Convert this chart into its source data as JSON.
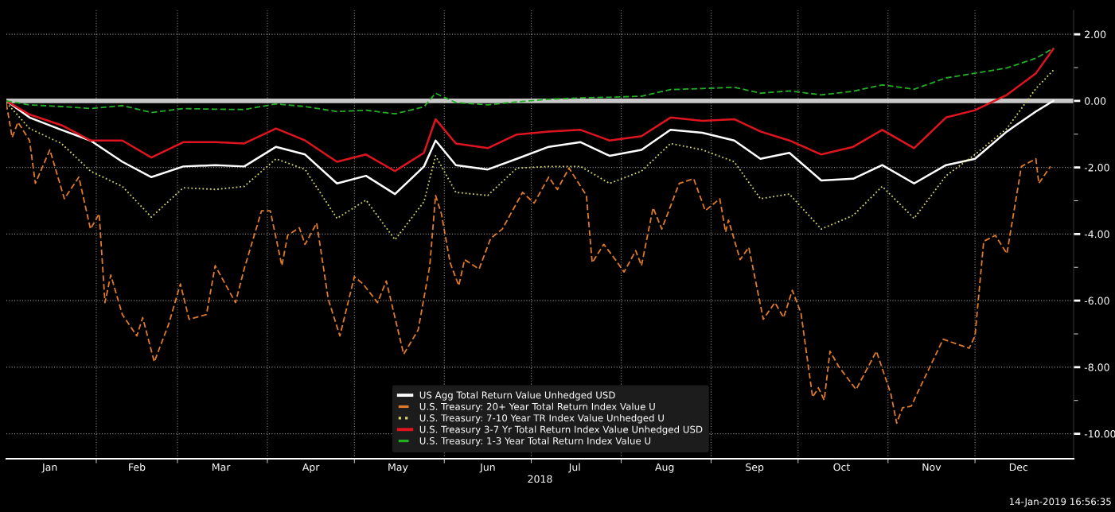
{
  "chart_data": {
    "type": "line",
    "xlabel": "2018",
    "xlim": [
      "2018-01-01",
      "2019-01-04"
    ],
    "xticks": [
      {
        "value": "2018-01-16",
        "label": "Jan"
      },
      {
        "value": "2018-02-01",
        "label": null
      },
      {
        "value": "2018-02-15",
        "label": "Feb"
      },
      {
        "value": "2018-03-01",
        "label": null
      },
      {
        "value": "2018-03-16",
        "label": "Mar"
      },
      {
        "value": "2018-04-01",
        "label": null
      },
      {
        "value": "2018-04-16",
        "label": "Apr"
      },
      {
        "value": "2018-05-01",
        "label": null
      },
      {
        "value": "2018-05-16",
        "label": "May"
      },
      {
        "value": "2018-06-01",
        "label": null
      },
      {
        "value": "2018-06-16",
        "label": "Jun"
      },
      {
        "value": "2018-07-01",
        "label": null
      },
      {
        "value": "2018-07-16",
        "label": "Jul"
      },
      {
        "value": "2018-08-01",
        "label": null
      },
      {
        "value": "2018-08-16",
        "label": "Aug"
      },
      {
        "value": "2018-09-01",
        "label": null
      },
      {
        "value": "2018-09-16",
        "label": "Sep"
      },
      {
        "value": "2018-10-01",
        "label": null
      },
      {
        "value": "2018-10-16",
        "label": "Oct"
      },
      {
        "value": "2018-11-01",
        "label": null
      },
      {
        "value": "2018-11-16",
        "label": "Nov"
      },
      {
        "value": "2018-12-01",
        "label": null
      },
      {
        "value": "2018-12-16",
        "label": "Dec"
      }
    ],
    "ylim": [
      -10.75,
      2.72
    ],
    "yticks": [
      {
        "value": 2,
        "label": "2.00"
      },
      {
        "value": 1,
        "label": null
      },
      {
        "value": 0,
        "label": "0.00"
      },
      {
        "value": -1,
        "label": null
      },
      {
        "value": -2,
        "label": "-2.00"
      },
      {
        "value": -3,
        "label": null
      },
      {
        "value": -4,
        "label": "-4.00"
      },
      {
        "value": -5,
        "label": null
      },
      {
        "value": -6,
        "label": "-6.00"
      },
      {
        "value": -7,
        "label": null
      },
      {
        "value": -8,
        "label": "-8.00"
      },
      {
        "value": -9,
        "label": null
      },
      {
        "value": -10,
        "label": "-10.00"
      }
    ],
    "grid": true,
    "legend": "bottom",
    "ref_lines": [
      {
        "axis": "y",
        "value": 0,
        "color": "#c8c8c8"
      }
    ],
    "annotations": [
      "14-Jan-2019 16:56:35"
    ],
    "series": [
      {
        "name": "US Agg Total Return Value Unhedged USD",
        "color": "#ffffff",
        "line_style": "solid",
        "x": [
          "2018-01-01",
          "2018-01-09",
          "2018-01-20",
          "2018-01-30",
          "2018-02-10",
          "2018-02-20",
          "2018-03-03",
          "2018-03-14",
          "2018-03-24",
          "2018-04-04",
          "2018-04-14",
          "2018-04-25",
          "2018-05-05",
          "2018-05-15",
          "2018-05-25",
          "2018-05-29",
          "2018-06-05",
          "2018-06-16",
          "2018-06-26",
          "2018-07-07",
          "2018-07-18",
          "2018-07-28",
          "2018-08-08",
          "2018-08-18",
          "2018-08-29",
          "2018-09-09",
          "2018-09-18",
          "2018-09-28",
          "2018-10-09",
          "2018-10-20",
          "2018-10-30",
          "2018-11-10",
          "2018-11-21",
          "2018-12-01",
          "2018-12-12",
          "2018-12-22",
          "2018-12-28"
        ],
        "values": [
          0,
          -0.5,
          -0.87,
          -1.19,
          -1.83,
          -2.29,
          -1.97,
          -1.93,
          -1.97,
          -1.38,
          -1.61,
          -2.48,
          -2.25,
          -2.8,
          -1.97,
          -1.19,
          -1.93,
          -2.06,
          -1.74,
          -1.38,
          -1.24,
          -1.65,
          -1.47,
          -0.87,
          -0.96,
          -1.19,
          -1.74,
          -1.56,
          -2.39,
          -2.34,
          -1.93,
          -2.48,
          -1.93,
          -1.74,
          -0.92,
          -0.32,
          0
        ]
      },
      {
        "name": "U.S. Treasury: 20+ Year Total Return Index Value U",
        "color": "#e07a2a",
        "line_style": "dashed",
        "x": [
          "2018-01-01",
          "2018-01-03",
          "2018-01-05",
          "2018-01-09",
          "2018-01-11",
          "2018-01-16",
          "2018-01-21",
          "2018-01-26",
          "2018-01-30",
          "2018-02-02",
          "2018-02-04",
          "2018-02-06",
          "2018-02-10",
          "2018-02-15",
          "2018-02-17",
          "2018-02-21",
          "2018-02-26",
          "2018-03-02",
          "2018-03-05",
          "2018-03-11",
          "2018-03-14",
          "2018-03-21",
          "2018-03-24",
          "2018-03-30",
          "2018-04-02",
          "2018-04-06",
          "2018-04-08",
          "2018-04-12",
          "2018-04-14",
          "2018-04-18",
          "2018-04-22",
          "2018-04-26",
          "2018-05-01",
          "2018-05-04",
          "2018-05-09",
          "2018-05-12",
          "2018-05-18",
          "2018-05-23",
          "2018-05-27",
          "2018-05-29",
          "2018-05-31",
          "2018-06-03",
          "2018-06-06",
          "2018-06-08",
          "2018-06-13",
          "2018-06-17",
          "2018-06-21",
          "2018-06-28",
          "2018-07-02",
          "2018-07-07",
          "2018-07-10",
          "2018-07-14",
          "2018-07-20",
          "2018-07-22",
          "2018-07-26",
          "2018-07-30",
          "2018-08-02",
          "2018-08-06",
          "2018-08-08",
          "2018-08-12",
          "2018-08-15",
          "2018-08-21",
          "2018-08-26",
          "2018-08-30",
          "2018-09-04",
          "2018-09-06",
          "2018-09-07",
          "2018-09-11",
          "2018-09-14",
          "2018-09-19",
          "2018-09-23",
          "2018-09-26",
          "2018-09-29",
          "2018-10-02",
          "2018-10-06",
          "2018-10-08",
          "2018-10-10",
          "2018-10-12",
          "2018-10-15",
          "2018-10-21",
          "2018-10-28",
          "2018-11-02",
          "2018-11-04",
          "2018-11-06",
          "2018-11-09",
          "2018-11-15",
          "2018-11-20",
          "2018-11-29",
          "2018-12-01",
          "2018-12-04",
          "2018-12-08",
          "2018-12-12",
          "2018-12-17",
          "2018-12-22",
          "2018-12-23",
          "2018-12-27"
        ],
        "values": [
          -0.09,
          -1.1,
          -0.64,
          -1.19,
          -2.48,
          -1.47,
          -2.94,
          -2.29,
          -3.85,
          -3.39,
          -6.06,
          -5.23,
          -6.42,
          -7.06,
          -6.51,
          -7.84,
          -6.7,
          -5.5,
          -6.56,
          -6.42,
          -4.95,
          -6.06,
          -5.05,
          -3.3,
          -3.3,
          -4.95,
          -4.04,
          -3.81,
          -4.31,
          -3.67,
          -5.96,
          -7.06,
          -5.28,
          -5.5,
          -6.06,
          -5.41,
          -7.61,
          -6.88,
          -4.95,
          -2.84,
          -3.39,
          -4.86,
          -5.55,
          -4.77,
          -5.05,
          -4.13,
          -3.85,
          -2.75,
          -3.07,
          -2.29,
          -2.66,
          -2.02,
          -2.84,
          -4.86,
          -4.31,
          -4.77,
          -5.14,
          -4.5,
          -4.95,
          -3.21,
          -3.85,
          -2.48,
          -2.34,
          -3.3,
          -2.94,
          -3.94,
          -3.58,
          -4.77,
          -4.4,
          -6.56,
          -6.06,
          -6.51,
          -5.69,
          -6.38,
          -8.9,
          -8.62,
          -8.99,
          -7.52,
          -7.98,
          -8.67,
          -7.52,
          -8.81,
          -9.68,
          -9.22,
          -9.17,
          -8.07,
          -7.16,
          -7.43,
          -7.06,
          -4.22,
          -4.04,
          -4.59,
          -1.97,
          -1.74,
          -2.48,
          -1.97
        ]
      },
      {
        "name": "U.S. Treasury: 7-10 Year TR Index Value Unhedged U",
        "color": "#d4d46a",
        "line_style": "dotted",
        "x": [
          "2018-01-01",
          "2018-01-09",
          "2018-01-20",
          "2018-01-30",
          "2018-02-10",
          "2018-02-20",
          "2018-03-03",
          "2018-03-14",
          "2018-03-24",
          "2018-04-04",
          "2018-04-14",
          "2018-04-25",
          "2018-05-05",
          "2018-05-15",
          "2018-05-25",
          "2018-05-29",
          "2018-06-05",
          "2018-06-16",
          "2018-06-26",
          "2018-07-07",
          "2018-07-18",
          "2018-07-28",
          "2018-08-08",
          "2018-08-18",
          "2018-08-29",
          "2018-09-09",
          "2018-09-18",
          "2018-09-28",
          "2018-10-09",
          "2018-10-20",
          "2018-10-30",
          "2018-11-10",
          "2018-11-21",
          "2018-12-01",
          "2018-12-12",
          "2018-12-22",
          "2018-12-28"
        ],
        "values": [
          -0.05,
          -0.83,
          -1.28,
          -2.11,
          -2.57,
          -3.49,
          -2.61,
          -2.66,
          -2.57,
          -1.74,
          -2.06,
          -3.53,
          -2.98,
          -4.17,
          -3.03,
          -1.65,
          -2.75,
          -2.84,
          -2.02,
          -1.97,
          -1.97,
          -2.48,
          -2.11,
          -1.28,
          -1.47,
          -1.83,
          -2.94,
          -2.8,
          -3.85,
          -3.44,
          -2.57,
          -3.53,
          -2.25,
          -1.61,
          -0.83,
          0.37,
          0.92
        ]
      },
      {
        "name": "U.S. Treasury 3-7 Yr Total Return Index Value Unhedged USD",
        "color": "#e0141e",
        "line_style": "solid",
        "x": [
          "2018-01-01",
          "2018-01-09",
          "2018-01-20",
          "2018-01-30",
          "2018-02-10",
          "2018-02-20",
          "2018-03-03",
          "2018-03-14",
          "2018-03-24",
          "2018-04-04",
          "2018-04-14",
          "2018-04-25",
          "2018-05-05",
          "2018-05-15",
          "2018-05-25",
          "2018-05-29",
          "2018-06-05",
          "2018-06-16",
          "2018-06-26",
          "2018-07-07",
          "2018-07-18",
          "2018-07-28",
          "2018-08-08",
          "2018-08-18",
          "2018-08-29",
          "2018-09-09",
          "2018-09-18",
          "2018-09-28",
          "2018-10-09",
          "2018-10-20",
          "2018-10-30",
          "2018-11-10",
          "2018-11-21",
          "2018-12-01",
          "2018-12-12",
          "2018-12-22",
          "2018-12-28"
        ],
        "values": [
          0,
          -0.41,
          -0.73,
          -1.19,
          -1.19,
          -1.7,
          -1.24,
          -1.24,
          -1.28,
          -0.83,
          -1.19,
          -1.83,
          -1.61,
          -2.11,
          -1.56,
          -0.55,
          -1.28,
          -1.42,
          -1.01,
          -0.92,
          -0.87,
          -1.19,
          -1.06,
          -0.5,
          -0.6,
          -0.55,
          -0.92,
          -1.19,
          -1.61,
          -1.38,
          -0.87,
          -1.42,
          -0.5,
          -0.28,
          0.18,
          0.83,
          1.56
        ]
      },
      {
        "name": "U.S. Treasury: 1-3 Year Total Return Index Value U",
        "color": "#22b022",
        "line_style": "dashed",
        "x": [
          "2018-01-01",
          "2018-01-09",
          "2018-01-20",
          "2018-01-30",
          "2018-02-10",
          "2018-02-20",
          "2018-03-03",
          "2018-03-14",
          "2018-03-24",
          "2018-04-04",
          "2018-04-14",
          "2018-04-25",
          "2018-05-05",
          "2018-05-15",
          "2018-05-25",
          "2018-05-29",
          "2018-06-05",
          "2018-06-16",
          "2018-06-26",
          "2018-07-07",
          "2018-07-18",
          "2018-07-28",
          "2018-08-08",
          "2018-08-18",
          "2018-08-29",
          "2018-09-09",
          "2018-09-18",
          "2018-09-28",
          "2018-10-09",
          "2018-10-20",
          "2018-10-30",
          "2018-11-10",
          "2018-11-21",
          "2018-12-01",
          "2018-12-12",
          "2018-12-22",
          "2018-12-28"
        ],
        "values": [
          0,
          -0.12,
          -0.17,
          -0.23,
          -0.14,
          -0.35,
          -0.23,
          -0.25,
          -0.26,
          -0.09,
          -0.17,
          -0.32,
          -0.28,
          -0.39,
          -0.18,
          0.23,
          -0.05,
          -0.12,
          -0.03,
          0.05,
          0.09,
          0.11,
          0.14,
          0.34,
          0.37,
          0.41,
          0.23,
          0.3,
          0.18,
          0.29,
          0.48,
          0.35,
          0.69,
          0.83,
          0.99,
          1.28,
          1.58
        ]
      }
    ]
  }
}
